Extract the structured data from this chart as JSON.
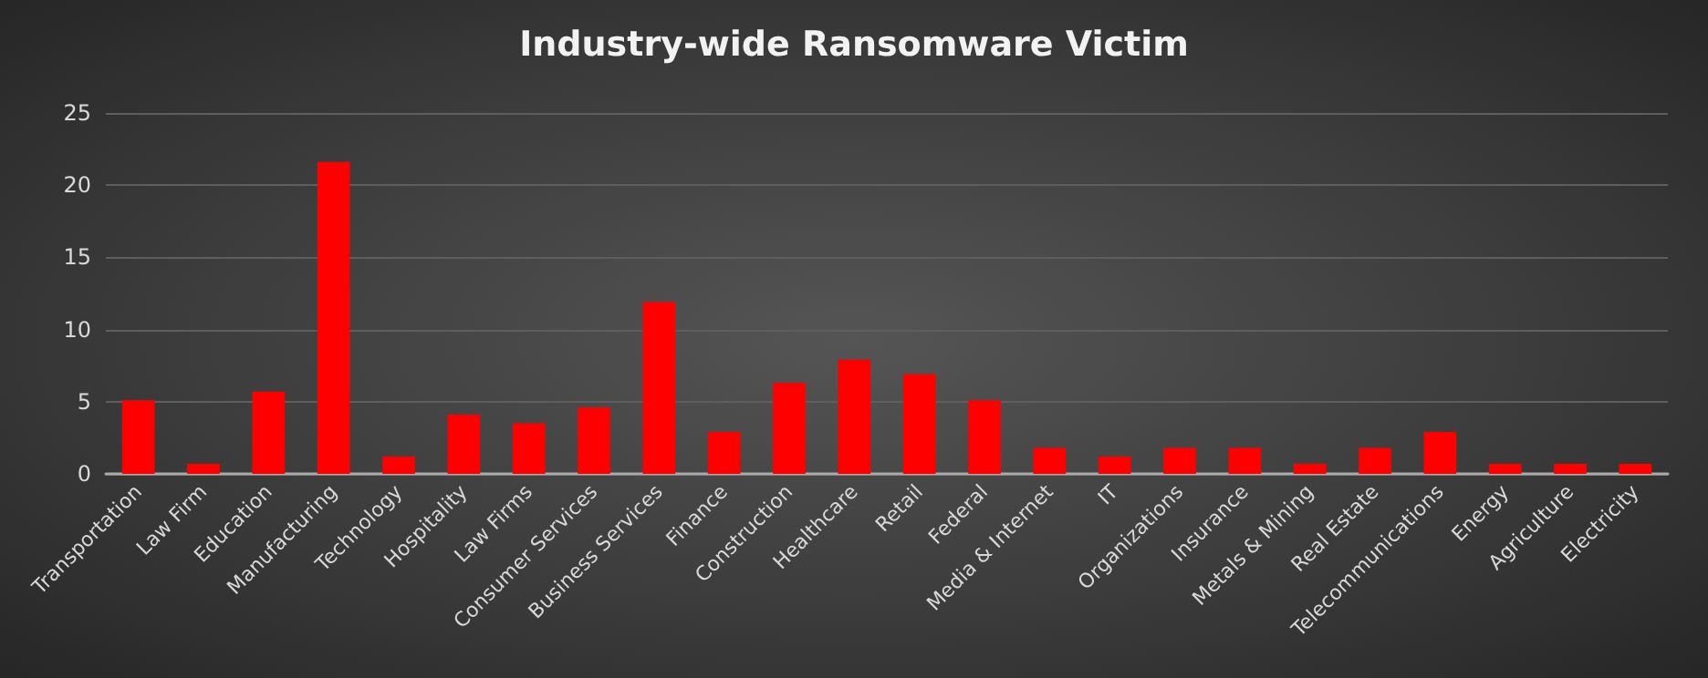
{
  "chart_data": {
    "type": "bar",
    "title": "Industry-wide Ransomware Victim",
    "categories": [
      "Transportation",
      "Law Firm",
      "Education",
      "Manufacturing",
      "Technology",
      "Hospitality",
      "Law Firms",
      "Consumer Services",
      "Business Services",
      "Finance",
      "Construction",
      "Healthcare",
      "Retail",
      "Federal",
      "Media & Internet",
      "IT",
      "Organizations",
      "Insurance",
      "Metals & Mining",
      "Real Estate",
      "Telecommunications",
      "Energy",
      "Agriculture",
      "Electricity"
    ],
    "values": [
      5.1,
      0.7,
      5.7,
      21.6,
      1.2,
      4.1,
      3.5,
      4.6,
      11.9,
      2.9,
      6.3,
      7.9,
      6.9,
      5.1,
      1.8,
      1.2,
      1.8,
      1.8,
      0.7,
      1.8,
      2.9,
      0.7,
      0.7,
      0.7
    ],
    "color": "#ff0000",
    "ylim": [
      0,
      25
    ],
    "yticks": [
      0,
      5,
      10,
      15,
      20,
      25
    ],
    "grid": "y"
  }
}
